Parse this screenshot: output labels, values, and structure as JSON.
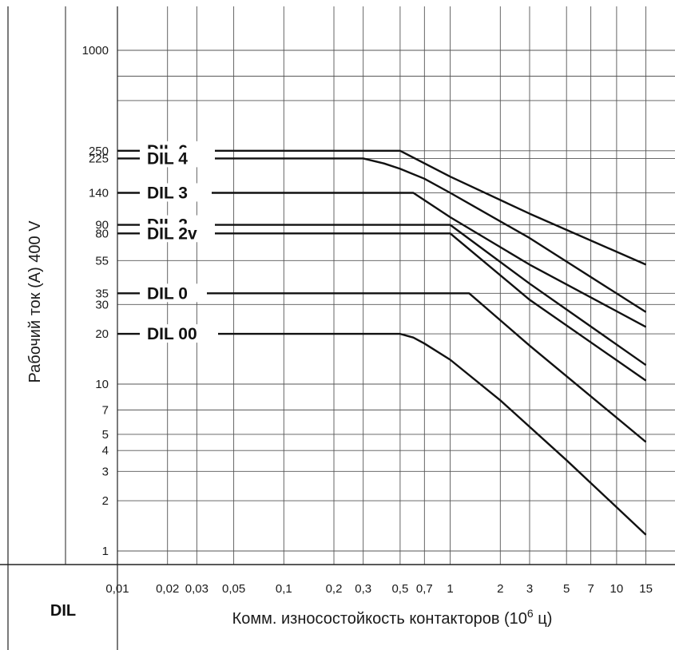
{
  "chart_data": {
    "type": "line",
    "title": "",
    "corner_label": "DIL",
    "ylabel": "Рабочий ток  (A)  400 V",
    "xlabel": {
      "text": "Комм. износостойкость контакторов (10",
      "sup": "6",
      "after": " ц)"
    },
    "x_scale": "log",
    "y_scale": "log",
    "xlim": [
      0.0085,
      16
    ],
    "ylim": [
      0.9,
      1500
    ],
    "x_ticks": [
      {
        "v": 0.01,
        "t": "0,01"
      },
      {
        "v": 0.02,
        "t": "0,02"
      },
      {
        "v": 0.03,
        "t": "0,03"
      },
      {
        "v": 0.05,
        "t": "0,05"
      },
      {
        "v": 0.1,
        "t": "0,1"
      },
      {
        "v": 0.2,
        "t": "0,2"
      },
      {
        "v": 0.3,
        "t": "0,3"
      },
      {
        "v": 0.5,
        "t": "0,5"
      },
      {
        "v": 0.7,
        "t": "0,7"
      },
      {
        "v": 1,
        "t": "1"
      },
      {
        "v": 2,
        "t": "2"
      },
      {
        "v": 3,
        "t": "3"
      },
      {
        "v": 5,
        "t": "5"
      },
      {
        "v": 7,
        "t": "7"
      },
      {
        "v": 10,
        "t": "10"
      },
      {
        "v": 15,
        "t": "15"
      }
    ],
    "y_ticks": [
      {
        "v": 1,
        "t": "1"
      },
      {
        "v": 2,
        "t": "2"
      },
      {
        "v": 3,
        "t": "3"
      },
      {
        "v": 4,
        "t": "4"
      },
      {
        "v": 5,
        "t": "5"
      },
      {
        "v": 7,
        "t": "7"
      },
      {
        "v": 10,
        "t": "10"
      },
      {
        "v": 20,
        "t": "20"
      },
      {
        "v": 30,
        "t": "30"
      },
      {
        "v": 35,
        "t": "35"
      },
      {
        "v": 55,
        "t": "55"
      },
      {
        "v": 80,
        "t": "80"
      },
      {
        "v": 90,
        "t": "90"
      },
      {
        "v": 140,
        "t": "140"
      },
      {
        "v": 225,
        "t": "225"
      },
      {
        "v": 250,
        "t": "250"
      },
      {
        "v": 1000,
        "t": "1000"
      }
    ],
    "extra_y_gridlines": [
      500,
      700
    ],
    "grid": true,
    "series": [
      {
        "name": "DIL 6",
        "points": [
          [
            0.008,
            250
          ],
          [
            0.5,
            250
          ],
          [
            1,
            175
          ],
          [
            3,
            105
          ],
          [
            15,
            52
          ]
        ]
      },
      {
        "name": "DIL 4",
        "points": [
          [
            0.008,
            225
          ],
          [
            0.3,
            225
          ],
          [
            0.4,
            210
          ],
          [
            0.5,
            195
          ],
          [
            0.7,
            170
          ],
          [
            1,
            140
          ],
          [
            3,
            75
          ],
          [
            15,
            27
          ]
        ]
      },
      {
        "name": "DIL 3",
        "points": [
          [
            0.008,
            140
          ],
          [
            0.6,
            140
          ],
          [
            1,
            100
          ],
          [
            3,
            52
          ],
          [
            15,
            22
          ]
        ]
      },
      {
        "name": "DIL 2",
        "points": [
          [
            0.008,
            90
          ],
          [
            1,
            90
          ],
          [
            3,
            40
          ],
          [
            15,
            13
          ]
        ]
      },
      {
        "name": "DIL 2v",
        "points": [
          [
            0.008,
            80
          ],
          [
            1,
            80
          ],
          [
            3,
            32
          ],
          [
            15,
            10.5
          ]
        ]
      },
      {
        "name": "DIL 0",
        "points": [
          [
            0.008,
            35
          ],
          [
            1.3,
            35
          ],
          [
            3,
            17
          ],
          [
            15,
            4.5
          ]
        ]
      },
      {
        "name": "DIL 00",
        "points": [
          [
            0.008,
            20
          ],
          [
            0.5,
            20
          ],
          [
            0.6,
            19
          ],
          [
            0.7,
            17.5
          ],
          [
            1,
            14
          ],
          [
            2,
            8
          ],
          [
            5,
            3.5
          ],
          [
            15,
            1.25
          ]
        ]
      }
    ]
  }
}
